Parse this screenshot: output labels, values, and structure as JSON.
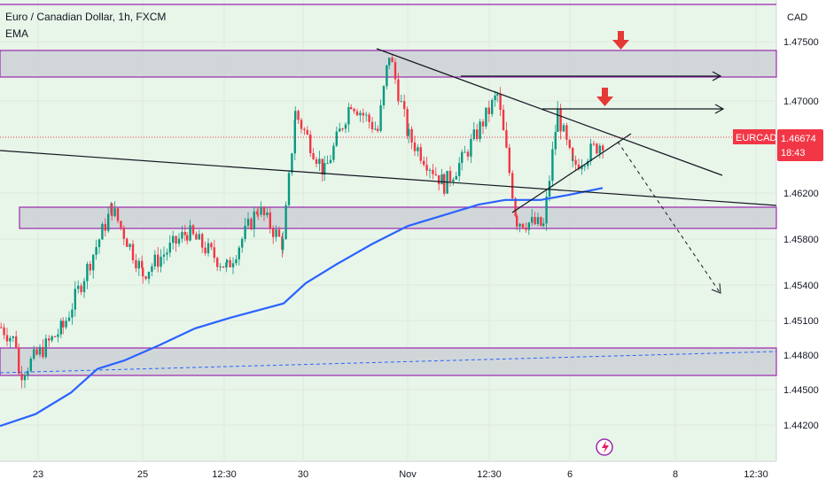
{
  "legend": {
    "title": "Euro / Canadian Dollar, 1h, FXCM",
    "indicator": "EMA"
  },
  "price_axis": {
    "currency": "CAD",
    "ticks": [
      "1.47500",
      "1.47000",
      "1.46200",
      "1.45800",
      "1.45400",
      "1.45100",
      "1.44800",
      "1.44500",
      "1.44200"
    ]
  },
  "time_axis": {
    "ticks": [
      "23",
      "25",
      "12:30",
      "30",
      "Nov",
      "12:30",
      "6",
      "8",
      "12:30"
    ]
  },
  "last_price": {
    "symbol": "EURCAD",
    "price": "1.46674",
    "countdown": "18:43"
  },
  "colors": {
    "up": "#089981",
    "down": "#f23645",
    "ema": "#2962ff",
    "zone_border": "#9c27b0",
    "zone_fill": "#c9ccd3",
    "arrow_marker": "#e53935",
    "bg_tint": "#e8f5e9"
  },
  "chart_data": {
    "type": "candlestick",
    "symbol": "EURCAD",
    "timeframe": "1h",
    "source": "FXCM",
    "x_axis_ticks": [
      "23",
      "25",
      "12:30",
      "30",
      "Nov",
      "12:30",
      "6",
      "8",
      "12:30"
    ],
    "ylim": [
      1.4405,
      1.4775
    ],
    "last_price": 1.46674,
    "series": [
      {
        "name": "EMA",
        "points": [
          [
            0,
            1.4427
          ],
          [
            40,
            1.4437
          ],
          [
            80,
            1.4455
          ],
          [
            110,
            1.4475
          ],
          [
            140,
            1.4482
          ],
          [
            180,
            1.4495
          ],
          [
            220,
            1.4509
          ],
          [
            260,
            1.4518
          ],
          [
            300,
            1.4526
          ],
          [
            320,
            1.453
          ],
          [
            345,
            1.4547
          ],
          [
            380,
            1.4563
          ],
          [
            420,
            1.458
          ],
          [
            460,
            1.4595
          ],
          [
            500,
            1.4604
          ],
          [
            540,
            1.4613
          ],
          [
            570,
            1.4617
          ],
          [
            610,
            1.4617
          ],
          [
            640,
            1.4621
          ],
          [
            680,
            1.4627
          ]
        ]
      }
    ],
    "candles_by_segment": [
      {
        "from": 0,
        "to": 20,
        "open": 1.451,
        "close": 1.4495
      },
      {
        "from": 20,
        "to": 70,
        "open": 1.447,
        "close": 1.451
      },
      {
        "from": 70,
        "to": 125,
        "open": 1.451,
        "close": 1.461
      },
      {
        "from": 125,
        "to": 160,
        "open": 1.461,
        "close": 1.4555
      },
      {
        "from": 160,
        "to": 210,
        "open": 1.4555,
        "close": 1.459
      },
      {
        "from": 210,
        "to": 255,
        "open": 1.459,
        "close": 1.456
      },
      {
        "from": 255,
        "to": 290,
        "open": 1.456,
        "close": 1.461
      },
      {
        "from": 290,
        "to": 318,
        "open": 1.461,
        "close": 1.458
      },
      {
        "from": 318,
        "to": 332,
        "open": 1.458,
        "close": 1.469
      },
      {
        "from": 332,
        "to": 365,
        "open": 1.469,
        "close": 1.464
      },
      {
        "from": 365,
        "to": 395,
        "open": 1.464,
        "close": 1.47
      },
      {
        "from": 395,
        "to": 425,
        "open": 1.47,
        "close": 1.4675
      },
      {
        "from": 425,
        "to": 438,
        "open": 1.4675,
        "close": 1.474
      },
      {
        "from": 438,
        "to": 460,
        "open": 1.474,
        "close": 1.467
      },
      {
        "from": 460,
        "to": 500,
        "open": 1.467,
        "close": 1.463
      },
      {
        "from": 500,
        "to": 520,
        "open": 1.463,
        "close": 1.465
      },
      {
        "from": 520,
        "to": 560,
        "open": 1.465,
        "close": 1.4705
      },
      {
        "from": 560,
        "to": 582,
        "open": 1.4705,
        "close": 1.46
      },
      {
        "from": 582,
        "to": 612,
        "open": 1.46,
        "close": 1.4595
      },
      {
        "from": 612,
        "to": 628,
        "open": 1.4595,
        "close": 1.469
      },
      {
        "from": 628,
        "to": 645,
        "open": 1.469,
        "close": 1.4645
      },
      {
        "from": 645,
        "to": 680,
        "open": 1.4645,
        "close": 1.4667
      }
    ]
  }
}
